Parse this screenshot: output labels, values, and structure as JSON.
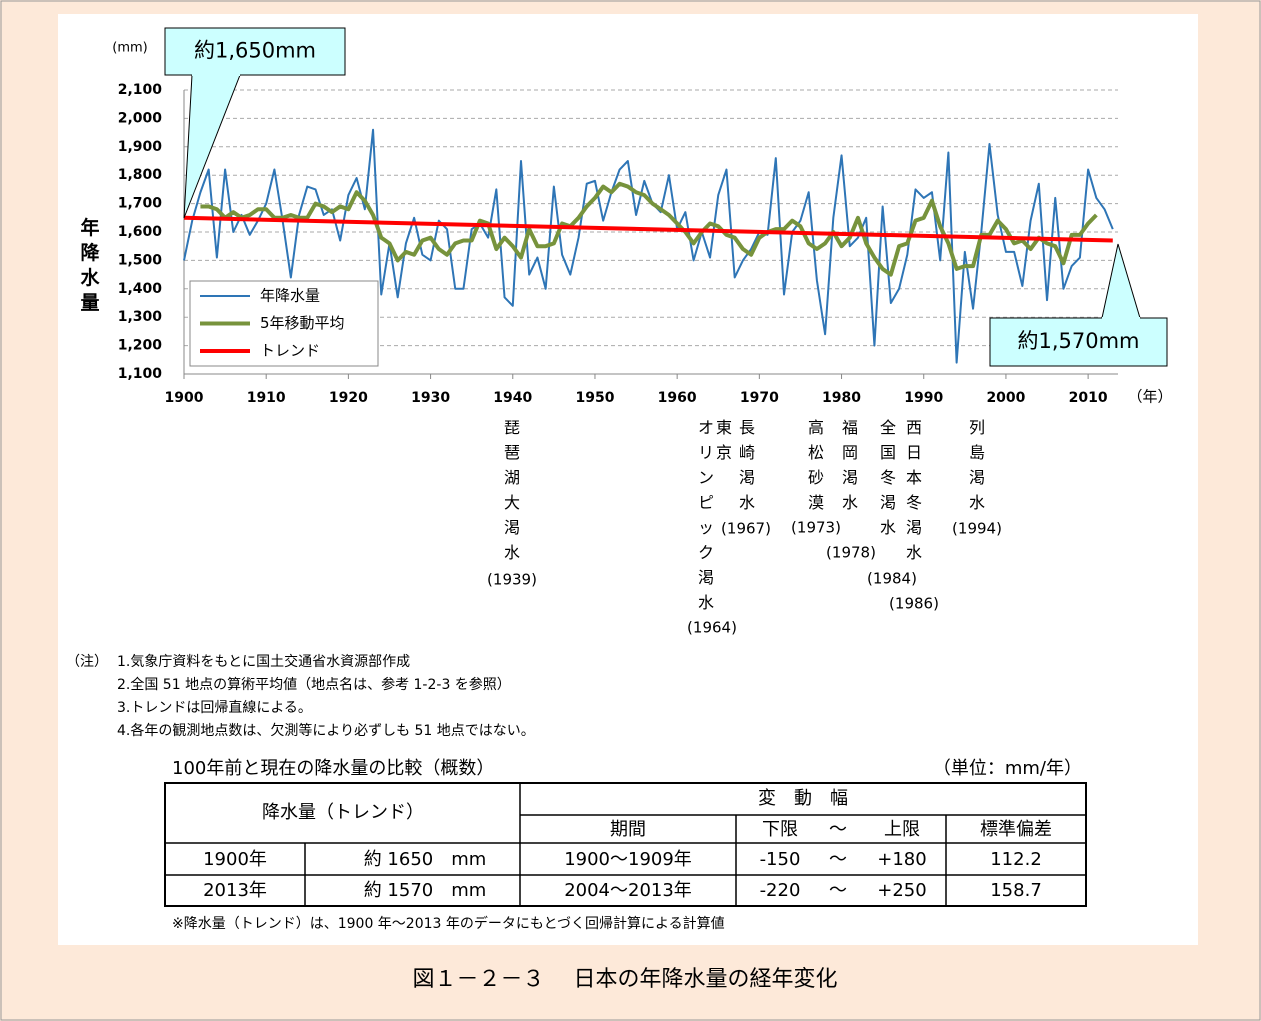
{
  "chart_data": {
    "type": "line",
    "y_unit": "(mm)",
    "ylabel": "年降水量",
    "x_unit": "（年）",
    "x": [
      1900,
      1901,
      1902,
      1903,
      1904,
      1905,
      1906,
      1907,
      1908,
      1909,
      1910,
      1911,
      1912,
      1913,
      1914,
      1915,
      1916,
      1917,
      1918,
      1919,
      1920,
      1921,
      1922,
      1923,
      1924,
      1925,
      1926,
      1927,
      1928,
      1929,
      1930,
      1931,
      1932,
      1933,
      1934,
      1935,
      1936,
      1937,
      1938,
      1939,
      1940,
      1941,
      1942,
      1943,
      1944,
      1945,
      1946,
      1947,
      1948,
      1949,
      1950,
      1951,
      1952,
      1953,
      1954,
      1955,
      1956,
      1957,
      1958,
      1959,
      1960,
      1961,
      1962,
      1963,
      1964,
      1965,
      1966,
      1967,
      1968,
      1969,
      1970,
      1971,
      1972,
      1973,
      1974,
      1975,
      1976,
      1977,
      1978,
      1979,
      1980,
      1981,
      1982,
      1983,
      1984,
      1985,
      1986,
      1987,
      1988,
      1989,
      1990,
      1991,
      1992,
      1993,
      1994,
      1995,
      1996,
      1997,
      1998,
      1999,
      2000,
      2001,
      2002,
      2003,
      2004,
      2005,
      2006,
      2007,
      2008,
      2009,
      2010,
      2011,
      2012,
      2013
    ],
    "xlim": [
      1900,
      2014
    ],
    "xticks": [
      1900,
      1910,
      1920,
      1930,
      1940,
      1950,
      1960,
      1970,
      1980,
      1990,
      2000,
      2010
    ],
    "ylim": [
      1100,
      2100
    ],
    "yticks": [
      {
        "value": 1100,
        "label": "1,100"
      },
      {
        "value": 1200,
        "label": "1,200"
      },
      {
        "value": 1300,
        "label": "1,300"
      },
      {
        "value": 1400,
        "label": "1,400"
      },
      {
        "value": 1500,
        "label": "1,500"
      },
      {
        "value": 1600,
        "label": "1,600"
      },
      {
        "value": 1700,
        "label": "1,700"
      },
      {
        "value": 1800,
        "label": "1,800"
      },
      {
        "value": 1900,
        "label": "1,900"
      },
      {
        "value": 2000,
        "label": "2,000"
      },
      {
        "value": 2100,
        "label": "2,100"
      }
    ],
    "grid": true,
    "legend": "lower-left",
    "series": [
      {
        "name": "年降水量",
        "color": "#2e75b6",
        "values": [
          1500,
          1640,
          1740,
          1820,
          1510,
          1820,
          1600,
          1660,
          1590,
          1640,
          1700,
          1820,
          1640,
          1440,
          1660,
          1760,
          1750,
          1660,
          1680,
          1570,
          1730,
          1790,
          1680,
          1960,
          1380,
          1560,
          1370,
          1560,
          1650,
          1520,
          1500,
          1640,
          1610,
          1400,
          1400,
          1610,
          1630,
          1580,
          1750,
          1370,
          1340,
          1850,
          1450,
          1510,
          1400,
          1760,
          1520,
          1450,
          1580,
          1770,
          1780,
          1640,
          1740,
          1820,
          1850,
          1660,
          1780,
          1700,
          1670,
          1800,
          1610,
          1670,
          1500,
          1600,
          1510,
          1730,
          1820,
          1440,
          1500,
          1540,
          1600,
          1590,
          1860,
          1380,
          1600,
          1640,
          1740,
          1430,
          1240,
          1650,
          1870,
          1550,
          1580,
          1650,
          1200,
          1690,
          1350,
          1400,
          1520,
          1750,
          1720,
          1740,
          1500,
          1880,
          1140,
          1530,
          1330,
          1600,
          1910,
          1660,
          1530,
          1530,
          1410,
          1640,
          1770,
          1360,
          1720,
          1400,
          1480,
          1510,
          1820,
          1720,
          1680,
          1610
        ]
      },
      {
        "name": "5年移動平均",
        "color": "#77933c",
        "values": [
          null,
          null,
          1690,
          1690,
          1680,
          1650,
          1670,
          1650,
          1660,
          1680,
          1680,
          1650,
          1650,
          1660,
          1650,
          1650,
          1700,
          1690,
          1670,
          1690,
          1680,
          1740,
          1710,
          1660,
          1580,
          1560,
          1500,
          1530,
          1520,
          1570,
          1580,
          1540,
          1520,
          1560,
          1570,
          1570,
          1640,
          1630,
          1540,
          1580,
          1550,
          1510,
          1610,
          1550,
          1550,
          1560,
          1630,
          1620,
          1650,
          1690,
          1720,
          1760,
          1740,
          1770,
          1760,
          1740,
          1730,
          1700,
          1680,
          1660,
          1630,
          1600,
          1560,
          1600,
          1630,
          1620,
          1590,
          1580,
          1540,
          1520,
          1580,
          1600,
          1610,
          1610,
          1640,
          1620,
          1560,
          1540,
          1560,
          1600,
          1550,
          1580,
          1650,
          1560,
          1510,
          1470,
          1450,
          1550,
          1560,
          1640,
          1650,
          1710,
          1620,
          1560,
          1470,
          1480,
          1480,
          1590,
          1590,
          1640,
          1610,
          1560,
          1570,
          1540,
          1580,
          1560,
          1550,
          1490,
          1590,
          1590,
          1630,
          1660,
          null,
          null
        ]
      },
      {
        "name": "トレンド",
        "color": "#ff0000",
        "x": [
          1900,
          2013
        ],
        "values": [
          1650,
          1570
        ]
      }
    ],
    "callouts": [
      "約1,650mm",
      "約1,570mm"
    ],
    "events": [
      {
        "lines": [
          "琵琶湖大渇水"
        ],
        "year": "(1939)"
      },
      {
        "lines": [
          "東京",
          "オリンピック渇水"
        ],
        "year": "(1964)"
      },
      {
        "lines": [
          "長崎渇水"
        ],
        "year": "(1967)"
      },
      {
        "lines": [
          "高松砂漠"
        ],
        "year": "(1973)"
      },
      {
        "lines": [
          "福岡渇水"
        ],
        "year": "(1978)"
      },
      {
        "lines": [
          "全国冬渇水"
        ],
        "year": "(1984)"
      },
      {
        "lines": [
          "西日本冬渇水"
        ],
        "year": "(1986)"
      },
      {
        "lines": [
          "列島渇水"
        ],
        "year": "(1994)"
      }
    ]
  },
  "notes": {
    "label": "（注）",
    "items": [
      "1.気象庁資料をもとに国土交通省水資源部作成",
      "2.全国 51 地点の算術平均値（地点名は、参考 1-2-3 を参照）",
      "3.トレンドは回帰直線による。",
      "4.各年の観測地点数は、欠測等により必ずしも 51 地点ではない。"
    ]
  },
  "table": {
    "title": "100年前と現在の降水量の比較（概数）",
    "unit": "（単位：mm/年）",
    "header": {
      "left": "降水量（トレンド）",
      "group": "変　動　幅",
      "period": "期間",
      "lower": "下限",
      "tilde": "～",
      "upper": "上限",
      "sd": "標準偏差"
    },
    "rows": [
      [
        "1900年",
        "約 1650　mm",
        "1900～1909年",
        "-150",
        "～",
        "+180",
        "112.2"
      ],
      [
        "2013年",
        "約 1570　mm",
        "2004～2013年",
        "-220",
        "～",
        "+250",
        "158.7"
      ]
    ],
    "footnote": "※降水量（トレンド）は、1900 年～2013 年のデータにもとづく回帰計算による計算値"
  },
  "caption": "図１－２－３　 日本の年降水量の経年変化"
}
